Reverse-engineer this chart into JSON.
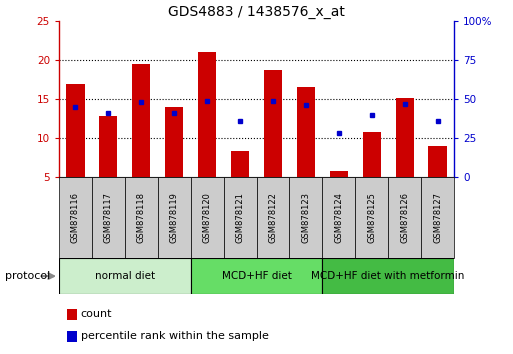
{
  "title": "GDS4883 / 1438576_x_at",
  "samples": [
    "GSM878116",
    "GSM878117",
    "GSM878118",
    "GSM878119",
    "GSM878120",
    "GSM878121",
    "GSM878122",
    "GSM878123",
    "GSM878124",
    "GSM878125",
    "GSM878126",
    "GSM878127"
  ],
  "count_values": [
    17.0,
    12.8,
    19.5,
    14.0,
    21.0,
    8.3,
    18.8,
    16.6,
    5.8,
    10.8,
    15.2,
    9.0
  ],
  "percentile_values": [
    45,
    41,
    48,
    41,
    49,
    36,
    49,
    46,
    28,
    40,
    47,
    36
  ],
  "ylim_left": [
    5,
    25
  ],
  "ylim_right": [
    0,
    100
  ],
  "yticks_left": [
    5,
    10,
    15,
    20,
    25
  ],
  "yticks_right": [
    0,
    25,
    50,
    75,
    100
  ],
  "bar_color": "#cc0000",
  "dot_color": "#0000cc",
  "group_labels": [
    "normal diet",
    "MCD+HF diet",
    "MCD+HF diet with metformin"
  ],
  "group_boundaries": [
    0,
    4,
    8,
    12
  ],
  "group_colors": [
    "#cceecc",
    "#66dd66",
    "#44bb44"
  ],
  "protocol_label": "protocol",
  "legend_count": "count",
  "legend_percentile": "percentile rank within the sample",
  "bar_color_red": "#cc0000",
  "dot_color_blue": "#0000cc",
  "left_axis_color": "#cc0000",
  "right_axis_color": "#0000cc",
  "xlabel_bg_color": "#cccccc",
  "grid_yticks": [
    10,
    15,
    20
  ]
}
